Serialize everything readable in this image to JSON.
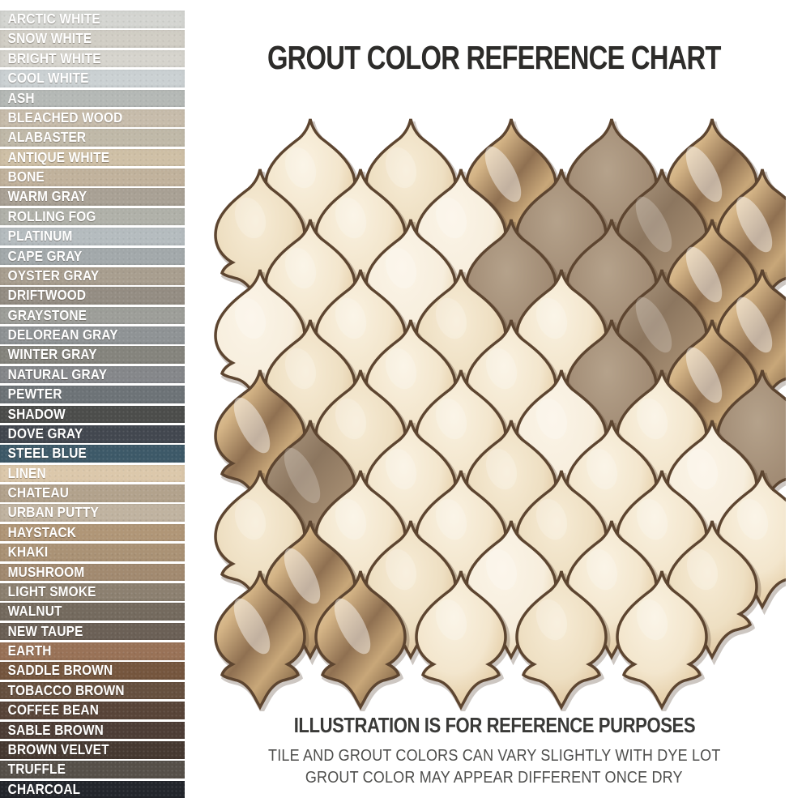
{
  "title": "GROUT COLOR REFERENCE CHART",
  "sidebar": {
    "swatches": [
      {
        "name": "ARCTIC WHITE",
        "color": "#d4d5d1"
      },
      {
        "name": "SNOW WHITE",
        "color": "#d1cec5"
      },
      {
        "name": "BRIGHT WHITE",
        "color": "#d6d4cd"
      },
      {
        "name": "COOL WHITE",
        "color": "#cbd1d3"
      },
      {
        "name": "ASH",
        "color": "#b5b9b6"
      },
      {
        "name": "BLEACHED WOOD",
        "color": "#c7bcab"
      },
      {
        "name": "ALABASTER",
        "color": "#c0b9a8"
      },
      {
        "name": "ANTIQUE WHITE",
        "color": "#cfc0a6"
      },
      {
        "name": "BONE",
        "color": "#c1b29c"
      },
      {
        "name": "WARM GRAY",
        "color": "#a9a195"
      },
      {
        "name": "ROLLING FOG",
        "color": "#b0b1a9"
      },
      {
        "name": "PLATINUM",
        "color": "#b5bcbf"
      },
      {
        "name": "CAPE GRAY",
        "color": "#a3a9ab"
      },
      {
        "name": "OYSTER GRAY",
        "color": "#a89e8f"
      },
      {
        "name": "DRIFTWOOD",
        "color": "#948d83"
      },
      {
        "name": "GRAYSTONE",
        "color": "#9d9e99"
      },
      {
        "name": "DELOREAN GRAY",
        "color": "#8f9395"
      },
      {
        "name": "WINTER GRAY",
        "color": "#85847d"
      },
      {
        "name": "NATURAL GRAY",
        "color": "#85878a"
      },
      {
        "name": "PEWTER",
        "color": "#6d7377"
      },
      {
        "name": "SHADOW",
        "color": "#4c4d4b"
      },
      {
        "name": "DOVE GRAY",
        "color": "#42474f"
      },
      {
        "name": "STEEL BLUE",
        "color": "#3d5968"
      },
      {
        "name": "LINEN",
        "color": "#dcc8ab"
      },
      {
        "name": "CHATEAU",
        "color": "#b2a28c"
      },
      {
        "name": "URBAN PUTTY",
        "color": "#c0b3a0"
      },
      {
        "name": "HAYSTACK",
        "color": "#b09677"
      },
      {
        "name": "KHAKI",
        "color": "#aa9275"
      },
      {
        "name": "MUSHROOM",
        "color": "#a28a70"
      },
      {
        "name": "LIGHT SMOKE",
        "color": "#8c8070"
      },
      {
        "name": "WALNUT",
        "color": "#746a5e"
      },
      {
        "name": "NEW TAUPE",
        "color": "#6b6056"
      },
      {
        "name": "EARTH",
        "color": "#997257"
      },
      {
        "name": "SADDLE BROWN",
        "color": "#75563e"
      },
      {
        "name": "TOBACCO BROWN",
        "color": "#66503f"
      },
      {
        "name": "COFFEE BEAN",
        "color": "#584438"
      },
      {
        "name": "SABLE BROWN",
        "color": "#4d3d36"
      },
      {
        "name": "BROWN VELVET",
        "color": "#463931"
      },
      {
        "name": "TRUFFLE",
        "color": "#565049"
      },
      {
        "name": "CHARCOAL",
        "color": "#23262c"
      }
    ]
  },
  "mosaic": {
    "description": "Arabesque lantern-shaped mosaic tiles in ivory gloss, matte taupe and metallic bronze finishes set in white grout",
    "finishes": {
      "C": "ivory-gloss",
      "C2": "ivory-warm",
      "C3": "ivory-pale",
      "M": "metallic-bronze",
      "T": "matte-taupe",
      "Tm": "metallic-taupe"
    },
    "palette": {
      "ivory": "#f3e6cd",
      "ivory_warm": "#eedfc2",
      "ivory_pale": "#f7eedd",
      "metallic_bronze": "#c2a176",
      "matte_taupe": "#a18b74",
      "metallic_taupe": "#8c765f",
      "glaze_edge": "#5d4530",
      "grout": "#ffffff"
    },
    "rows": [
      [
        "C",
        "C2",
        "M",
        "T",
        "M"
      ],
      [
        "C2",
        "C",
        "C3",
        "T",
        "Tm",
        "M"
      ],
      [
        "C",
        "C3",
        "T",
        "T",
        "M"
      ],
      [
        "C3",
        "C",
        "C2",
        "C",
        "Tm",
        "M"
      ],
      [
        "C2",
        "C",
        "C",
        "T",
        "M"
      ],
      [
        "M",
        "C2",
        "C",
        "C3",
        "C",
        "T"
      ],
      [
        "Tm",
        "C",
        "C2",
        "C",
        "C3"
      ],
      [
        "C2",
        "C",
        "C",
        "C2",
        "C",
        "C"
      ],
      [
        "M",
        "C2",
        "C3",
        "C",
        "C2"
      ],
      [
        "M",
        "M",
        "C",
        "C2",
        "C",
        null
      ]
    ]
  },
  "footer": {
    "heading": "ILLUSTRATION IS FOR REFERENCE PURPOSES",
    "line1": "TILE AND GROUT COLORS CAN VARY SLIGHTLY WITH DYE LOT",
    "line2": "GROUT COLOR MAY APPEAR DIFFERENT ONCE DRY"
  }
}
